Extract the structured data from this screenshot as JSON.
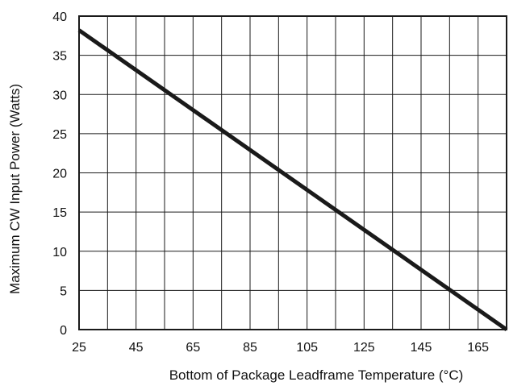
{
  "chart_data": {
    "type": "line",
    "title": "",
    "xlabel": "Bottom of Package Leadframe Temperature (°C)",
    "ylabel": "Maximum CW Input Power (Watts)",
    "xlim": [
      25,
      175
    ],
    "ylim": [
      0,
      40
    ],
    "x_ticks": [
      25,
      45,
      65,
      85,
      105,
      125,
      145,
      165
    ],
    "y_ticks": [
      0,
      5,
      10,
      15,
      20,
      25,
      30,
      35,
      40
    ],
    "x_gridlines": [
      25,
      35,
      45,
      55,
      65,
      75,
      85,
      95,
      105,
      115,
      125,
      135,
      145,
      155,
      165,
      175
    ],
    "y_gridlines": [
      0,
      5,
      10,
      15,
      20,
      25,
      30,
      35,
      40
    ],
    "grid": true,
    "legend": "none",
    "series": [
      {
        "x": [
          25,
          175
        ],
        "y": [
          38.2,
          0
        ],
        "color": "#1a1a1a"
      }
    ]
  }
}
